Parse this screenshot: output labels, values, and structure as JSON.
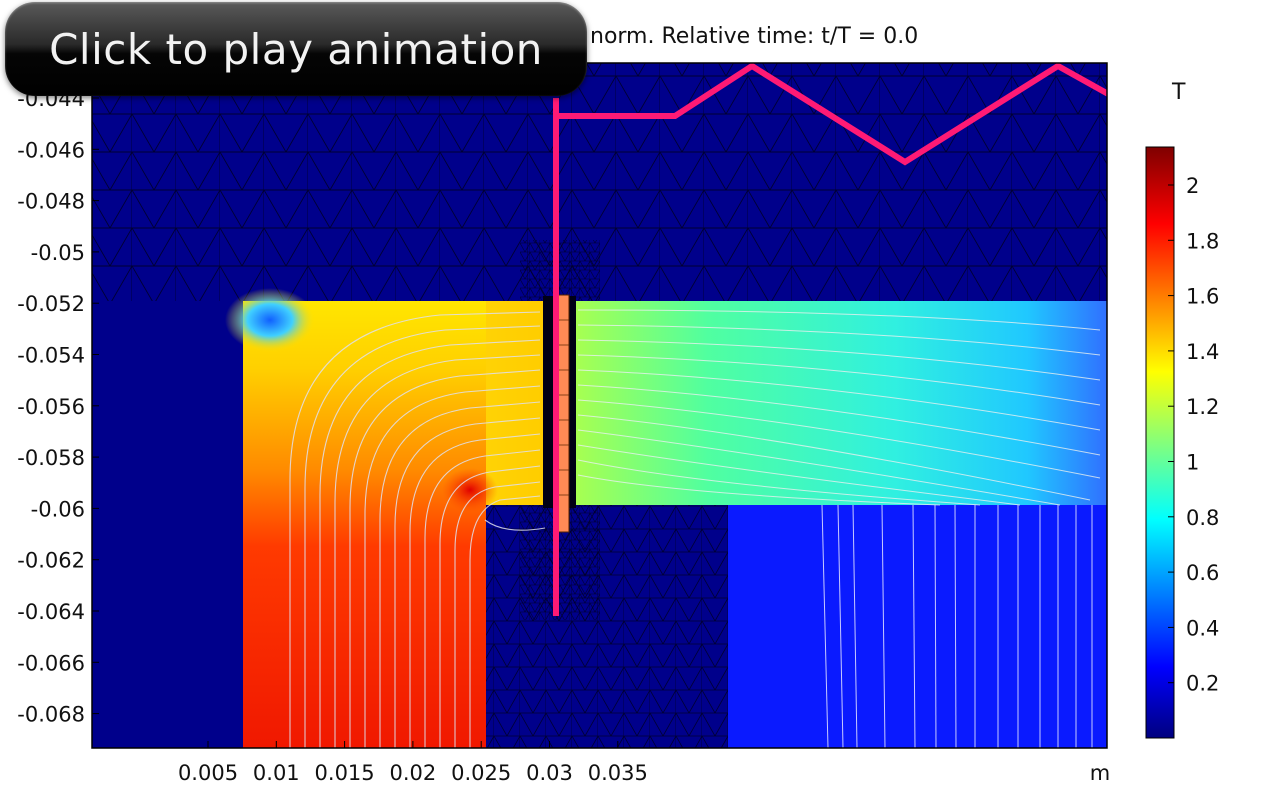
{
  "overlay": {
    "play_label": "Click to play animation"
  },
  "plot": {
    "title": "norm. Relative time: t/T = 0.0",
    "x_unit": "m",
    "x_ticks": [
      "0.005",
      "0.01",
      "0.015",
      "0.02",
      "0.025",
      "0.03",
      "0.035"
    ],
    "y_ticks": [
      "-0.044",
      "-0.046",
      "-0.048",
      "-0.05",
      "-0.052",
      "-0.054",
      "-0.056",
      "-0.058",
      "-0.06",
      "-0.062",
      "-0.064",
      "-0.066",
      "-0.068"
    ]
  },
  "colorbar": {
    "title": "T",
    "ticks": [
      "2",
      "1.8",
      "1.6",
      "1.4",
      "1.2",
      "1",
      "0.8",
      "0.6",
      "0.4",
      "0.2"
    ],
    "colors": [
      "#00007f",
      "#0000ff",
      "#00ffff",
      "#ffff00",
      "#ff0000",
      "#7f0000"
    ]
  },
  "colors": {
    "background_field": "#00008b",
    "mesh_line": "#000033",
    "coil_trace": "#ff1a75",
    "streamline": "#d8d8e8"
  }
}
